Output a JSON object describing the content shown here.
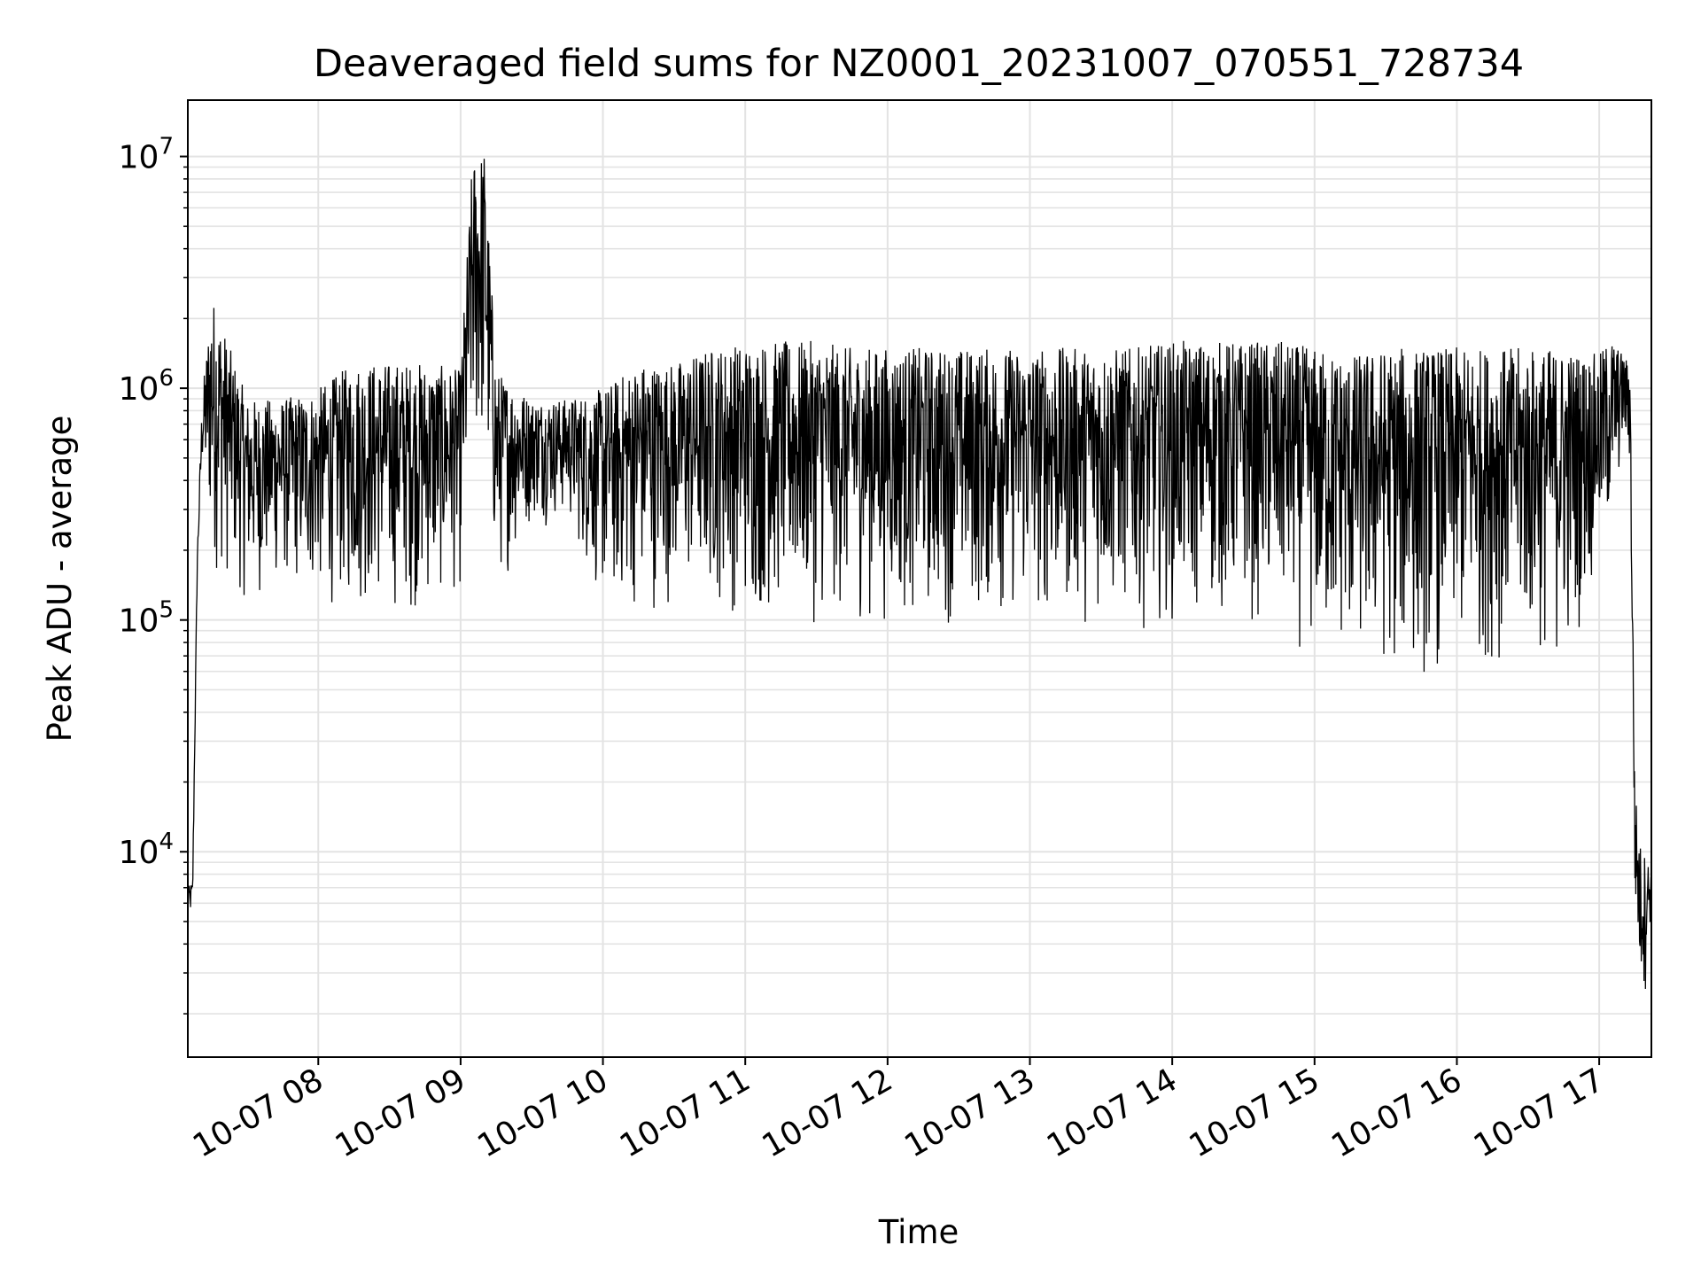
{
  "chart_data": {
    "type": "line",
    "title": "Deaveraged field sums for NZ0001_20231007_070551_728734",
    "xlabel": "Time",
    "ylabel": "Peak ADU - average",
    "yscale": "log",
    "ylim": [
      1300,
      17500000
    ],
    "xlim": [
      "2023-10-07 07:05",
      "2023-10-07 17:22"
    ],
    "grid": true,
    "x_ticks": [
      "10-07 08",
      "10-07 09",
      "10-07 10",
      "10-07 11",
      "10-07 12",
      "10-07 13",
      "10-07 14",
      "10-07 15",
      "10-07 16",
      "10-07 17"
    ],
    "y_ticks": [
      {
        "base": "10",
        "exp": "4",
        "value": 10000
      },
      {
        "base": "10",
        "exp": "5",
        "value": 100000
      },
      {
        "base": "10",
        "exp": "6",
        "value": 1000000
      },
      {
        "base": "10",
        "exp": "7",
        "value": 10000000
      }
    ],
    "line_color": "#000000",
    "grid_color": "#e3e3e3",
    "series": [
      {
        "envelope": {
          "note_time_unit": "clock time HH:MM",
          "time": [
            "07:05",
            "07:07",
            "07:09",
            "07:11",
            "07:15",
            "07:30",
            "07:45",
            "08:00",
            "08:15",
            "08:30",
            "08:45",
            "09:00",
            "09:05",
            "09:10",
            "09:15",
            "09:30",
            "09:45",
            "10:00",
            "10:15",
            "10:30",
            "10:45",
            "11:00",
            "11:15",
            "11:30",
            "11:45",
            "12:00",
            "12:15",
            "12:30",
            "12:45",
            "13:00",
            "13:15",
            "13:30",
            "13:45",
            "14:00",
            "14:15",
            "14:30",
            "14:45",
            "15:00",
            "15:15",
            "15:30",
            "15:45",
            "16:00",
            "16:15",
            "16:30",
            "16:45",
            "17:00",
            "17:05",
            "17:10",
            "17:13",
            "17:15",
            "17:17",
            "17:19",
            "17:21",
            "17:22"
          ],
          "high": [
            7000,
            7500,
            200000,
            900000,
            2600000,
            900000,
            900000,
            1000000,
            1300000,
            1300000,
            1300000,
            1200000,
            10000000,
            11000000,
            1200000,
            900000,
            900000,
            1000000,
            1300000,
            1300000,
            1500000,
            1600000,
            1600000,
            1600000,
            1500000,
            1500000,
            1500000,
            1500000,
            1500000,
            1500000,
            1500000,
            1500000,
            1500000,
            1600000,
            1600000,
            1600000,
            1600000,
            1500000,
            1400000,
            1500000,
            1500000,
            1500000,
            1500000,
            1500000,
            1500000,
            1400000,
            1700000,
            1400000,
            1300000,
            20000,
            11000,
            10000,
            9000,
            8000
          ],
          "low": [
            5000,
            5000,
            150000,
            400000,
            150000,
            110000,
            130000,
            110000,
            100000,
            100000,
            100000,
            120000,
            350000,
            400000,
            120000,
            250000,
            250000,
            100000,
            100000,
            110000,
            110000,
            90000,
            90000,
            90000,
            90000,
            90000,
            90000,
            90000,
            90000,
            90000,
            90000,
            90000,
            90000,
            90000,
            90000,
            90000,
            80000,
            60000,
            55000,
            50000,
            50000,
            55000,
            60000,
            60000,
            55000,
            150000,
            200000,
            500000,
            400000,
            5000,
            2200,
            2000,
            4000,
            5000
          ]
        }
      }
    ]
  }
}
